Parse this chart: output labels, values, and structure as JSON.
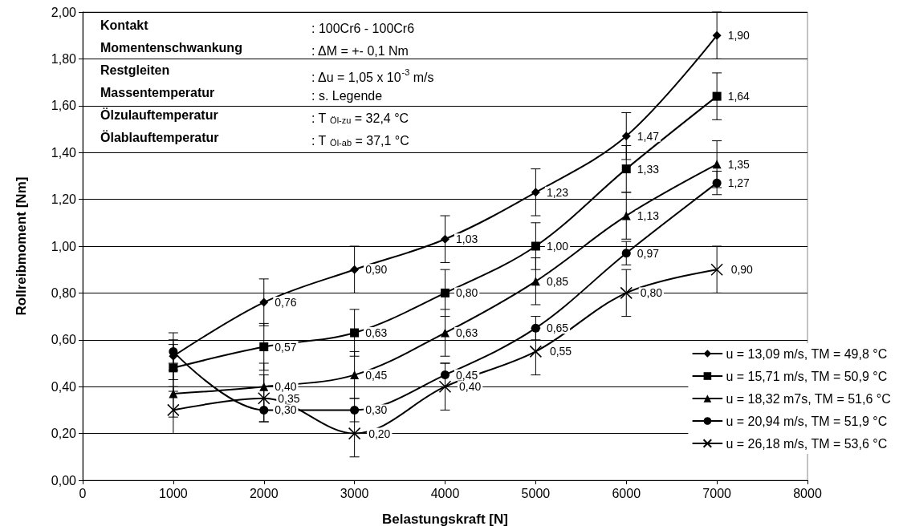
{
  "chart_data": {
    "type": "line",
    "xlabel": "Belastungskraft [N]",
    "ylabel": "Rollreibmoment [Nm]",
    "x": [
      1000,
      2000,
      3000,
      4000,
      5000,
      6000,
      7000
    ],
    "xlim": [
      0,
      8000
    ],
    "xticks": [
      0,
      1000,
      2000,
      3000,
      4000,
      5000,
      6000,
      7000,
      8000
    ],
    "ylim": [
      0,
      2
    ],
    "yticks": [
      {
        "value": 0,
        "label": "0,00"
      },
      {
        "value": 0.2,
        "label": "0,20"
      },
      {
        "value": 0.4,
        "label": "0,40"
      },
      {
        "value": 0.6,
        "label": "0,60"
      },
      {
        "value": 0.8,
        "label": "0,80"
      },
      {
        "value": 1,
        "label": "1,00"
      },
      {
        "value": 1.2,
        "label": "1,20"
      },
      {
        "value": 1.4,
        "label": "1,40"
      },
      {
        "value": 1.6,
        "label": "1,60"
      },
      {
        "value": 1.8,
        "label": "1,80"
      },
      {
        "value": 2,
        "label": "2,00"
      }
    ],
    "grid": "y",
    "legend": "bottom right",
    "line_style": "solid",
    "series": [
      {
        "name": "u = 13,09 m/s, TM = 49,8 °C",
        "color": "#000000",
        "marker": "diamond",
        "values": [
          0.53,
          0.76,
          0.9,
          1.03,
          1.23,
          1.47,
          1.9
        ],
        "errors": [
          0.1,
          0.1,
          0.1,
          0.1,
          0.1,
          0.1,
          0.1
        ],
        "value_labels": [
          null,
          "0,76",
          "0,90",
          "1,03",
          "1,23",
          "1,47",
          "1,90"
        ]
      },
      {
        "name": "u = 15,71 m/s, TM = 50,9 °C",
        "color": "#000000",
        "marker": "square",
        "values": [
          0.48,
          0.57,
          0.63,
          0.8,
          1.0,
          1.33,
          1.64
        ],
        "errors": [
          0.1,
          0.1,
          0.1,
          0.1,
          0.1,
          0.1,
          0.1
        ],
        "value_labels": [
          null,
          "0,57",
          "0,63",
          "0,80",
          "1,00",
          "1,33",
          "1,64"
        ]
      },
      {
        "name": "u = 18,32 m7s, TM = 51,6 °C",
        "color": "#000000",
        "marker": "triangle",
        "values": [
          0.37,
          0.4,
          0.45,
          0.63,
          0.85,
          1.13,
          1.35
        ],
        "errors": [
          0.1,
          0.1,
          0.1,
          0.1,
          0.1,
          0.1,
          0.1
        ],
        "value_labels": [
          null,
          "0,40",
          "0,45",
          "0,63",
          "0,85",
          "1,13",
          "1,35"
        ]
      },
      {
        "name": "u = 20,94 m/s, TM = 51,9 °C",
        "color": "#000000",
        "marker": "circle",
        "values": [
          0.55,
          0.3,
          0.3,
          0.45,
          0.65,
          0.97,
          1.27
        ],
        "errors": [
          0.05,
          0.05,
          0.05,
          0.05,
          0.05,
          0.05,
          0.05
        ],
        "value_labels": [
          null,
          "0,30",
          "0,30",
          "0,45",
          "0,65",
          "0,97",
          "1,27"
        ]
      },
      {
        "name": "u = 26,18 m/s, TM = 53,6 °C",
        "color": "#000000",
        "marker": "cross",
        "values": [
          0.3,
          0.35,
          0.2,
          0.4,
          0.55,
          0.8,
          0.9
        ],
        "errors": [
          0.1,
          0.1,
          0.1,
          0.1,
          0.1,
          0.1,
          0.1
        ],
        "value_labels": [
          null,
          "0,35",
          "0,20",
          "0,40",
          "0,55",
          "0,80",
          "0,90"
        ]
      }
    ],
    "annotations": [
      "Kontakt",
      ": 100Cr6 - 100Cr6",
      "Momentenschwankung",
      ": ΔM = +- 0,1 Nm",
      "Restgleiten",
      ": Δu = 1,05 x 10$^{-3}$ m/s",
      "Massentemperatur",
      ": s. Legende",
      "Ölzulauftemperatur",
      ": T $_{Öl-zu}$ = 32,4 °C",
      "Ölablauftemperatur",
      ": T $_{Öl-ab}$ = 37,1 °C"
    ]
  }
}
